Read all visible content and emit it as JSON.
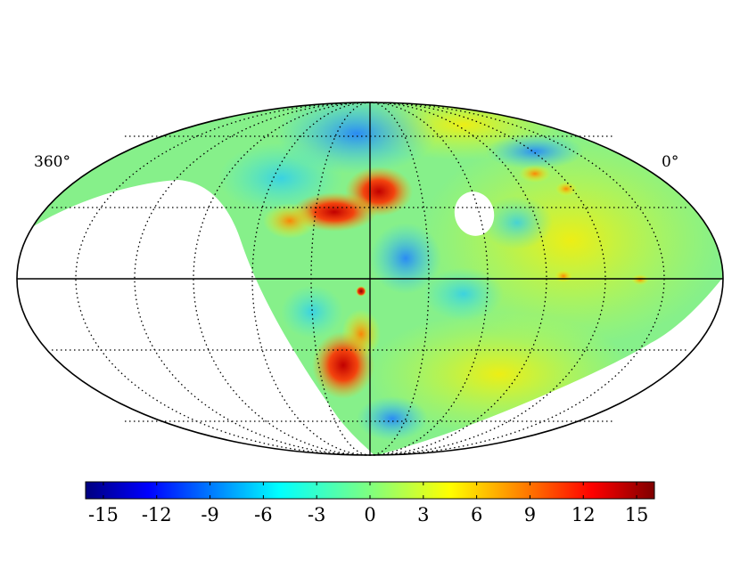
{
  "map": {
    "projection": "mollweide",
    "lon_left_label": "360°",
    "lon_right_label": "0°",
    "graticule": "dotted",
    "equator": "solid",
    "colormap": "jet",
    "masked_region_color": "#ffffff"
  },
  "colorbar": {
    "min": -16,
    "max": 16,
    "ticks": [
      "-15",
      "-12",
      "-9",
      "-6",
      "-3",
      "0",
      "3",
      "6",
      "9",
      "12",
      "15"
    ],
    "tick_values": [
      -15,
      -12,
      -9,
      -6,
      -3,
      0,
      3,
      6,
      9,
      12,
      15
    ],
    "colors": [
      "#00007f",
      "#0000ff",
      "#007fff",
      "#00ffff",
      "#7fff7f",
      "#ffff00",
      "#ff7f00",
      "#ff0000",
      "#7f0000"
    ]
  }
}
